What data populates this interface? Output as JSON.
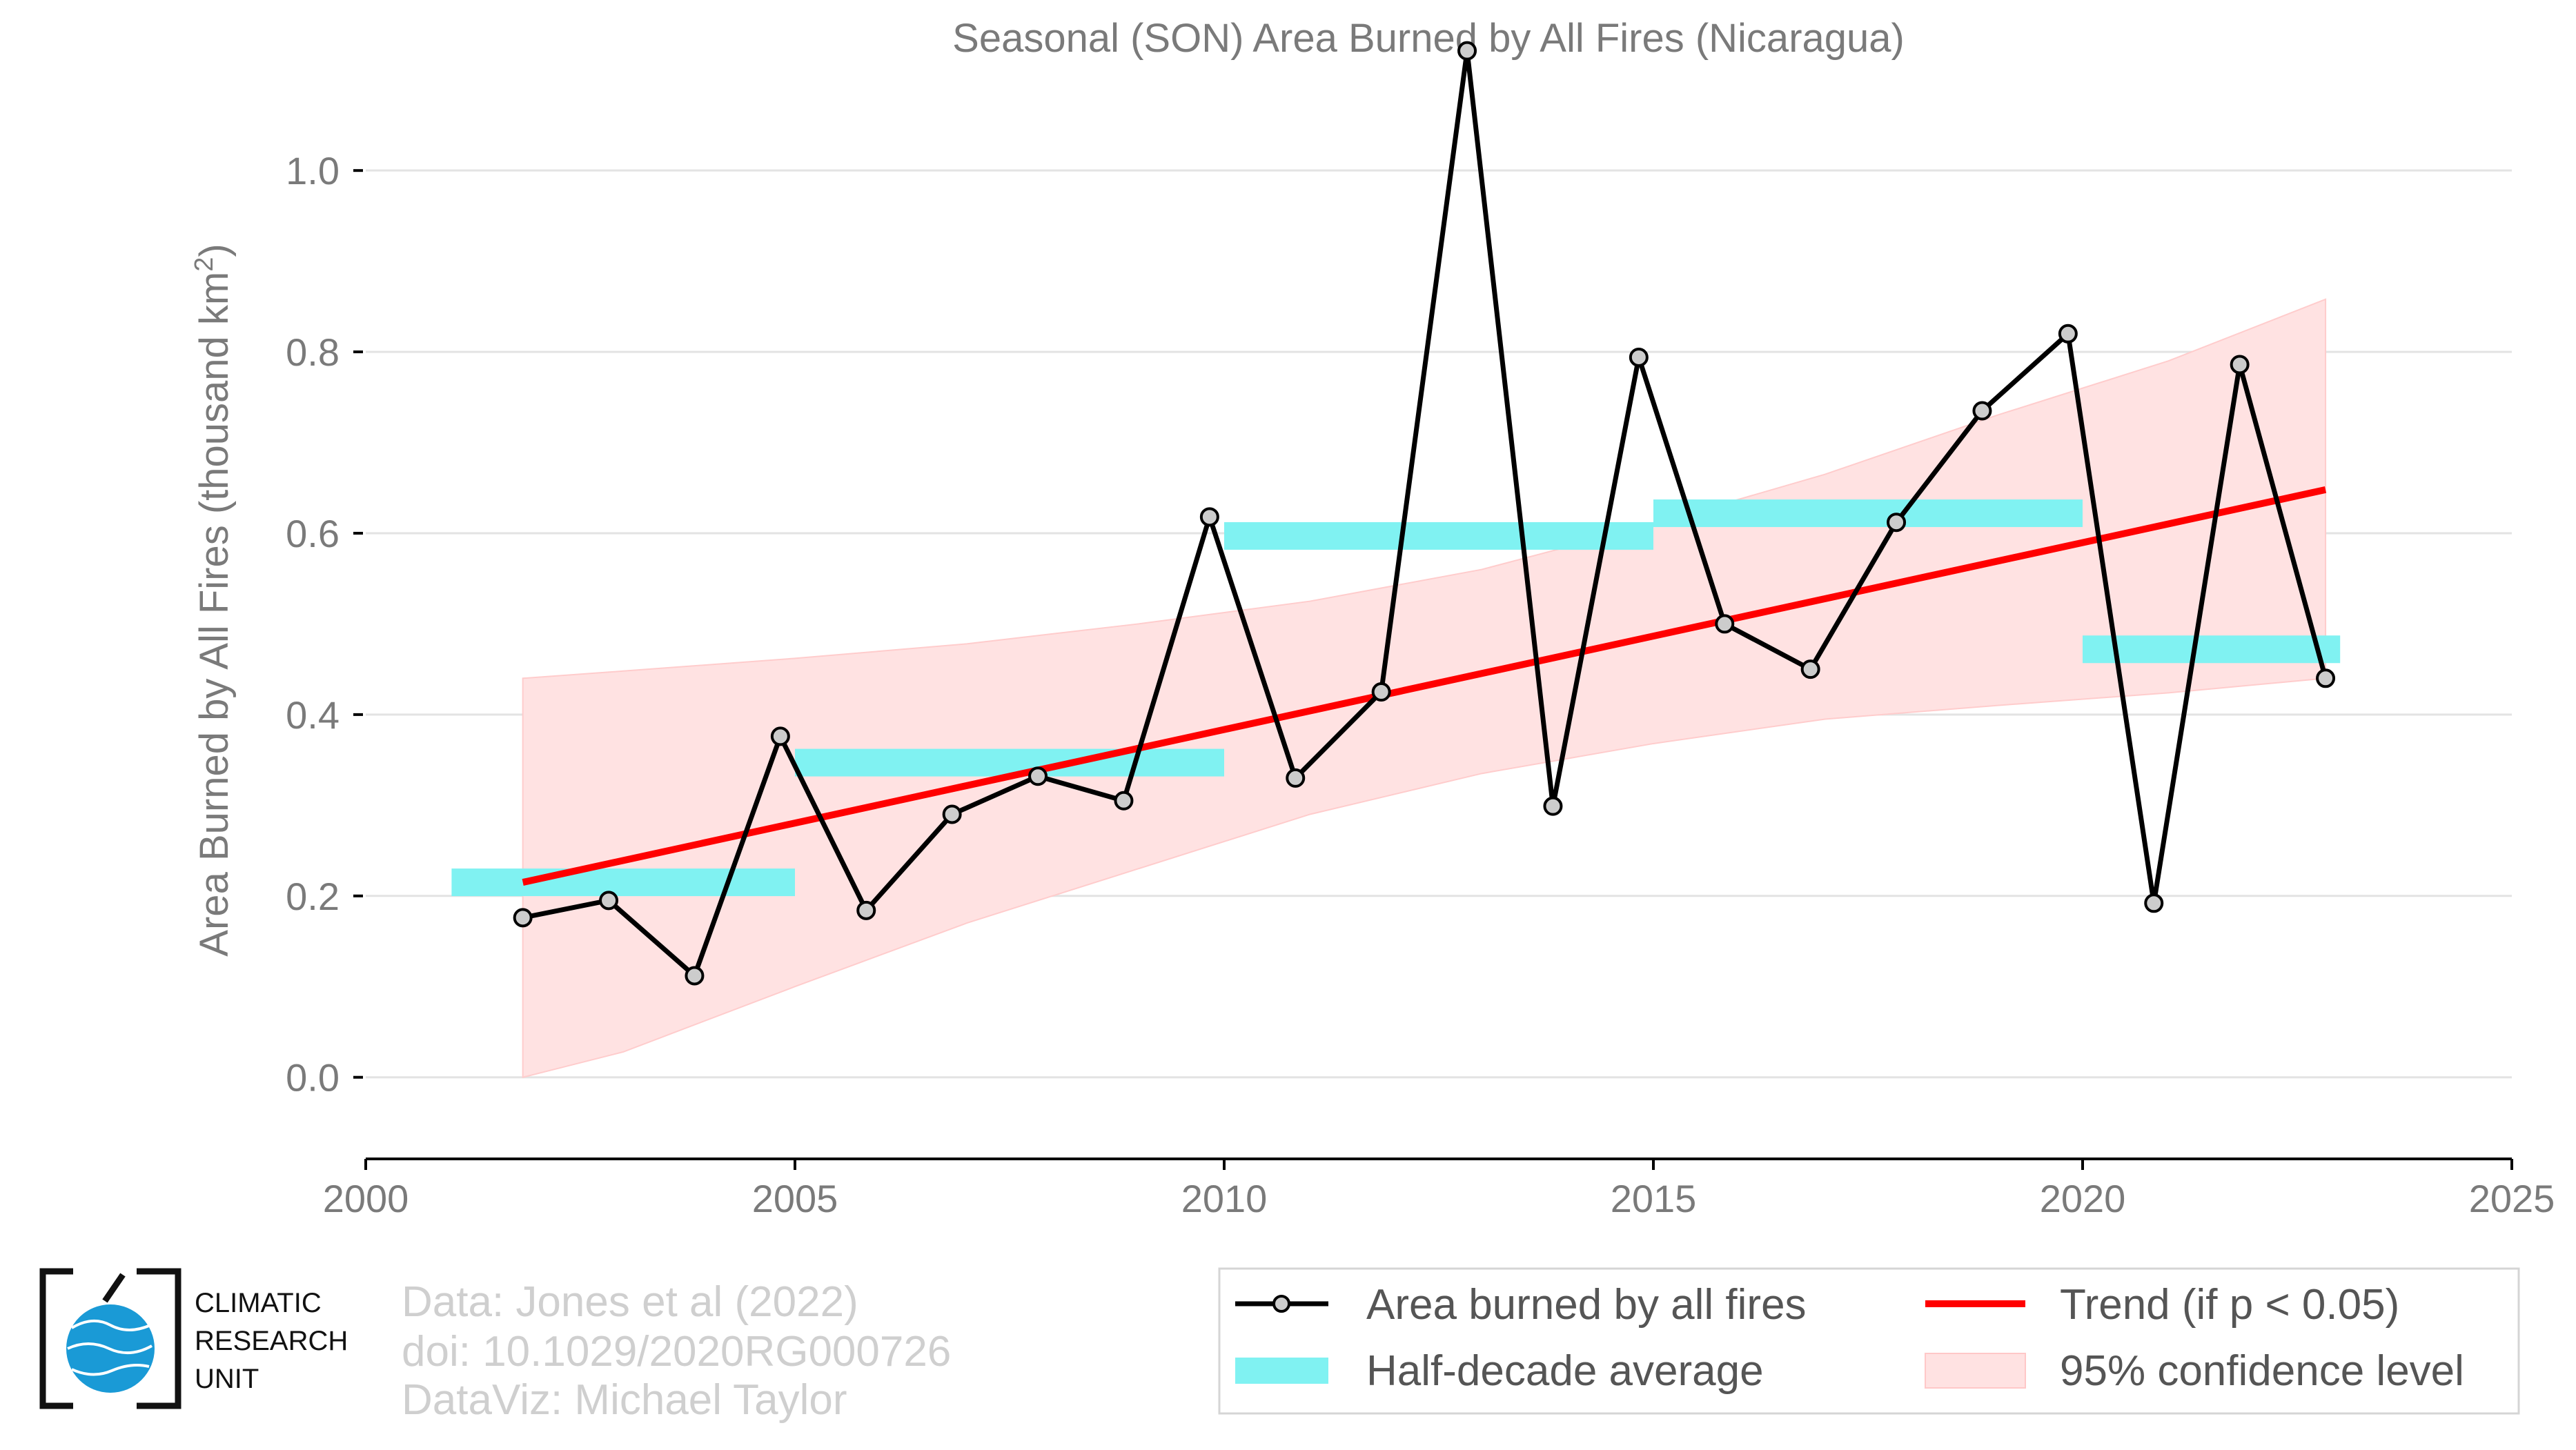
{
  "chart_data": {
    "type": "line",
    "title": "Seasonal (SON) Area Burned by All Fires (Nicaragua)",
    "ylabel_main": "Area Burned by All Fires (thousand km",
    "ylabel_sup": "2",
    "ylabel_end": ")",
    "xlim": [
      2000,
      2025
    ],
    "ylim": [
      -0.09,
      1.15
    ],
    "x_ticks": [
      2000,
      2005,
      2010,
      2015,
      2020,
      2025
    ],
    "y_ticks": [
      0.0,
      0.2,
      0.4,
      0.6,
      0.8,
      1.0
    ],
    "y_tick_labels": [
      "0.0",
      "0.2",
      "0.4",
      "0.6",
      "0.8",
      "1.0"
    ],
    "grid": "horizontal",
    "legend_position": "bottom-right",
    "series": [
      {
        "name": "Area burned by all fires",
        "color": "#000000",
        "marker_fill": "#cccccc",
        "x": [
          2001.83,
          2002.83,
          2003.83,
          2004.83,
          2005.83,
          2006.83,
          2007.83,
          2008.83,
          2009.83,
          2010.83,
          2011.83,
          2012.83,
          2013.83,
          2014.83,
          2015.83,
          2016.83,
          2017.83,
          2018.83,
          2019.83,
          2020.83,
          2021.83,
          2022.83
        ],
        "y": [
          0.176,
          0.195,
          0.112,
          0.376,
          0.184,
          0.29,
          0.332,
          0.305,
          0.618,
          0.33,
          0.425,
          1.132,
          0.299,
          0.794,
          0.5,
          0.45,
          0.612,
          0.735,
          0.82,
          0.192,
          0.786,
          0.44
        ]
      }
    ],
    "half_decade_average": {
      "name": "Half-decade average",
      "color": "#80f2f2",
      "segments": [
        {
          "x0": 2001,
          "x1": 2005,
          "y": 0.215
        },
        {
          "x0": 2005,
          "x1": 2010,
          "y": 0.347
        },
        {
          "x0": 2010,
          "x1": 2015,
          "y": 0.597
        },
        {
          "x0": 2015,
          "x1": 2020,
          "y": 0.622
        },
        {
          "x0": 2020,
          "x1": 2023,
          "y": 0.472
        }
      ]
    },
    "trend": {
      "name": "Trend (if p < 0.05)",
      "color": "#ff0000",
      "x": [
        2001.83,
        2022.83
      ],
      "y": [
        0.215,
        0.648
      ]
    },
    "confidence_band": {
      "name": "95% confidence level",
      "color": "#ffe2e2",
      "x": [
        2001.83,
        2003,
        2005,
        2007,
        2009,
        2011,
        2013,
        2015,
        2017,
        2019,
        2021,
        2022.83
      ],
      "upper": [
        0.44,
        0.448,
        0.462,
        0.478,
        0.5,
        0.525,
        0.56,
        0.61,
        0.665,
        0.73,
        0.79,
        0.858
      ],
      "lower": [
        0.0,
        0.028,
        0.1,
        0.17,
        0.23,
        0.29,
        0.335,
        0.368,
        0.395,
        0.41,
        0.424,
        0.44
      ]
    }
  },
  "credits": {
    "line1": "Data: Jones et al (2022)",
    "line2": "doi: 10.1029/2020RG000726",
    "line3": "DataViz: Michael Taylor"
  },
  "logo": {
    "line1": "CLIMATIC",
    "line2": "RESEARCH",
    "line3": "UNIT",
    "globe_color": "#1a9ad6"
  },
  "legend_labels": {
    "series": "Area burned by all fires",
    "half_decade": "Half-decade average",
    "trend": "Trend (if p < 0.05)",
    "confidence": "95% confidence level"
  }
}
